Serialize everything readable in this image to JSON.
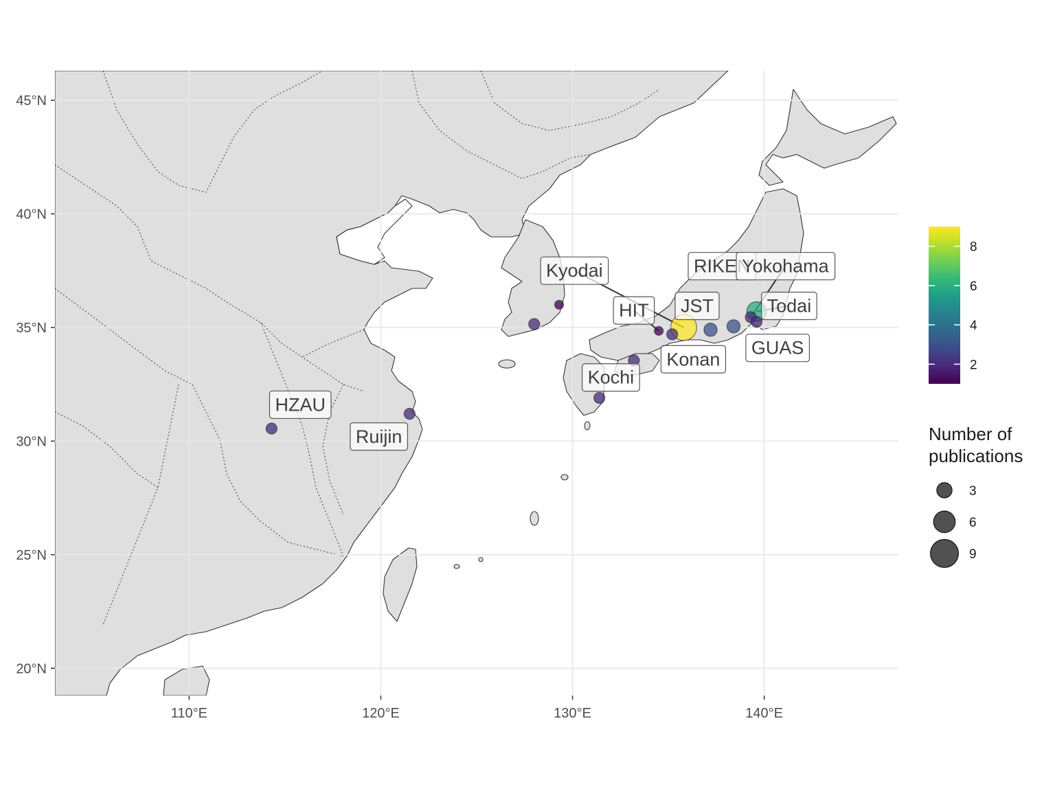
{
  "chart_data": {
    "type": "scatter",
    "xlim": [
      103.0,
      147.0
    ],
    "ylim": [
      18.8,
      46.3
    ],
    "x_ticks": [
      110,
      120,
      130,
      140
    ],
    "x_tick_labels": [
      "110°E",
      "120°E",
      "130°E",
      "140°E"
    ],
    "y_ticks": [
      20,
      25,
      30,
      35,
      40,
      45
    ],
    "y_tick_labels": [
      "20°N",
      "25°N",
      "30°N",
      "35°N",
      "40°N",
      "45°N"
    ],
    "grid": true,
    "points": [
      {
        "lon": 129.3,
        "lat": 36.0,
        "value": 1
      },
      {
        "lon": 128.0,
        "lat": 35.15,
        "value": 2
      },
      {
        "lon": 114.3,
        "lat": 30.55,
        "value": 2
      },
      {
        "lon": 121.5,
        "lat": 31.2,
        "value": 2
      },
      {
        "lon": 131.4,
        "lat": 31.9,
        "value": 2
      },
      {
        "lon": 133.2,
        "lat": 33.55,
        "value": 2
      },
      {
        "lon": 134.5,
        "lat": 34.85,
        "value": 1
      },
      {
        "lon": 135.2,
        "lat": 34.7,
        "value": 2
      },
      {
        "lon": 135.8,
        "lat": 35.0,
        "value": 9
      },
      {
        "lon": 137.2,
        "lat": 34.9,
        "value": 3
      },
      {
        "lon": 138.4,
        "lat": 35.05,
        "value": 3
      },
      {
        "lon": 139.3,
        "lat": 35.45,
        "value": 2
      },
      {
        "lon": 139.6,
        "lat": 35.7,
        "value": 6
      },
      {
        "lon": 139.6,
        "lat": 35.25,
        "value": 2
      }
    ],
    "labels": [
      {
        "text": "Kyodai",
        "lon": 130.1,
        "lat": 37.5,
        "target_lon": 135.8,
        "target_lat": 35.0
      },
      {
        "text": "RIKEN",
        "lon": 137.8,
        "lat": 37.7
      },
      {
        "text": "Yokohama",
        "lon": 141.1,
        "lat": 37.7,
        "target_lon": 139.3,
        "target_lat": 35.45
      },
      {
        "text": "JST",
        "lon": 136.5,
        "lat": 35.95
      },
      {
        "text": "HIT",
        "lon": 133.2,
        "lat": 35.75,
        "target_lon": 134.5,
        "target_lat": 34.85
      },
      {
        "text": "Todai",
        "lon": 141.3,
        "lat": 35.95,
        "target_lon": 139.6,
        "target_lat": 35.7
      },
      {
        "text": "GUAS",
        "lon": 140.7,
        "lat": 34.1
      },
      {
        "text": "Konan",
        "lon": 136.3,
        "lat": 33.6
      },
      {
        "text": "Kochi",
        "lon": 132.0,
        "lat": 32.8
      },
      {
        "text": "HZAU",
        "lon": 115.8,
        "lat": 31.6
      },
      {
        "text": "Ruijin",
        "lon": 119.9,
        "lat": 30.2
      }
    ],
    "colorbar": {
      "min": 1,
      "max": 9,
      "ticks": [
        2,
        4,
        6,
        8
      ],
      "tick_labels": [
        "2",
        "4",
        "6",
        "8"
      ],
      "colors": [
        "#440154",
        "#482878",
        "#3E4A89",
        "#31688E",
        "#26828E",
        "#1F9E89",
        "#35B779",
        "#6ECE58",
        "#B5DE2B",
        "#FDE725"
      ]
    },
    "size_legend": {
      "title_line1": "Number of",
      "title_line2": "publications",
      "values": [
        3,
        6,
        9
      ],
      "labels": [
        "3",
        "6",
        "9"
      ]
    },
    "colors": {
      "land": "#dfdfdf",
      "border": "#333333",
      "grid": "#e8e8e8",
      "label_text": "#404040"
    }
  }
}
